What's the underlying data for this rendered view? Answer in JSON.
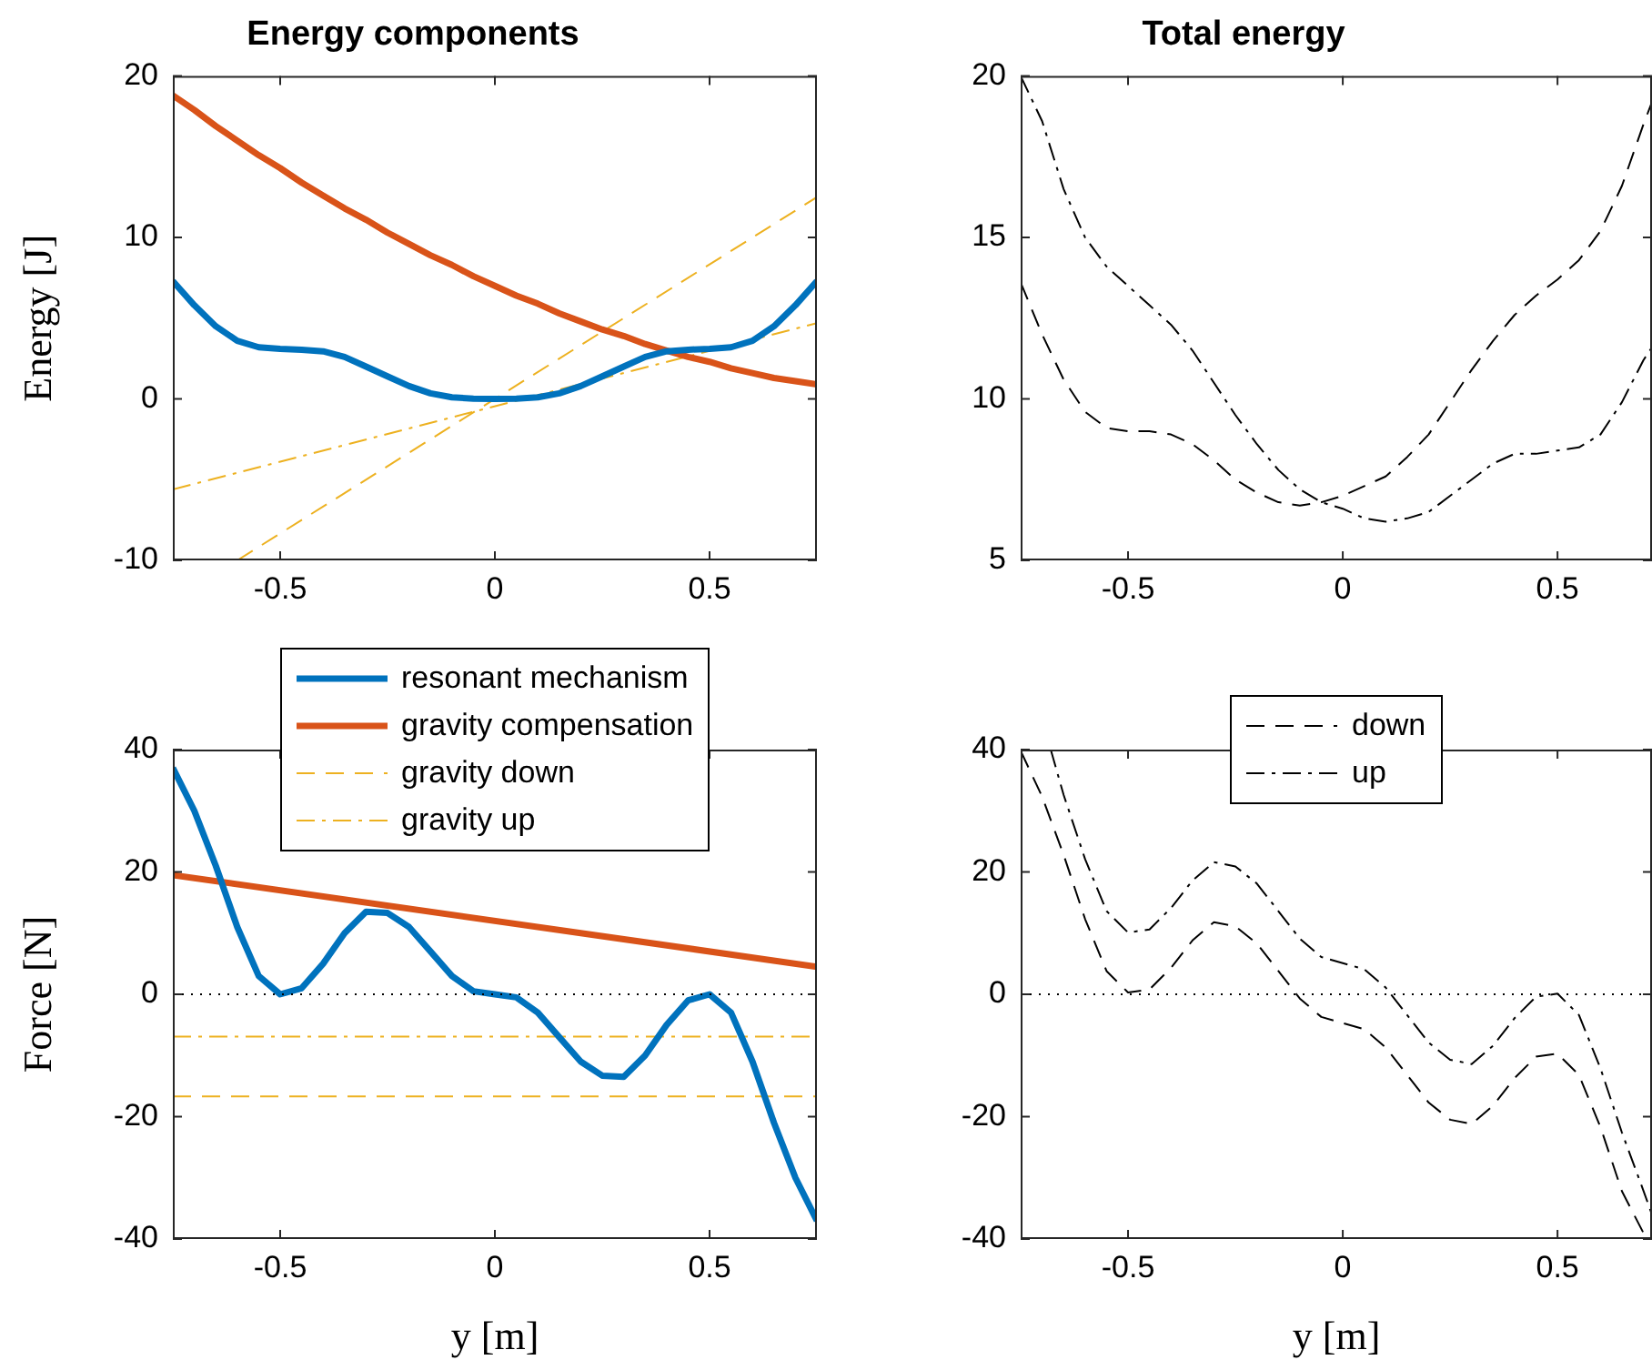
{
  "chart_data": [
    {
      "type": "line",
      "title": "Energy components",
      "ylabel": "Energy [J]",
      "xlim": [
        -0.75,
        0.75
      ],
      "ylim": [
        -10,
        20
      ],
      "xticks": [
        -0.5,
        0,
        0.5
      ],
      "yticks": [
        -10,
        0,
        10,
        20
      ],
      "grid": false,
      "legend": false,
      "marker": "none",
      "series": [
        {
          "color": "#0072bd",
          "line_style": "solid",
          "x": [
            -0.75,
            -0.7,
            -0.65,
            -0.6,
            -0.55,
            -0.5,
            -0.45,
            -0.4,
            -0.35,
            -0.3,
            -0.25,
            -0.2,
            -0.15,
            -0.1,
            -0.05,
            0,
            0.05,
            0.1,
            0.15,
            0.2,
            0.25,
            0.3,
            0.35,
            0.4,
            0.45,
            0.5,
            0.55,
            0.6,
            0.65,
            0.7,
            0.75
          ],
          "values": [
            7.3,
            5.8,
            4.5,
            3.6,
            3.2,
            3.1,
            3.05,
            2.95,
            2.6,
            2.0,
            1.4,
            0.8,
            0.35,
            0.1,
            0.02,
            0,
            0.02,
            0.1,
            0.35,
            0.8,
            1.4,
            2.0,
            2.6,
            2.95,
            3.05,
            3.1,
            3.2,
            3.6,
            4.5,
            5.8,
            7.3
          ]
        },
        {
          "color": "#d95319",
          "line_style": "solid",
          "x": [
            -0.75,
            -0.7,
            -0.65,
            -0.6,
            -0.55,
            -0.5,
            -0.45,
            -0.4,
            -0.35,
            -0.3,
            -0.25,
            -0.2,
            -0.15,
            -0.1,
            -0.05,
            0,
            0.05,
            0.1,
            0.15,
            0.2,
            0.25,
            0.3,
            0.35,
            0.4,
            0.45,
            0.5,
            0.55,
            0.6,
            0.65,
            0.7,
            0.75
          ],
          "values": [
            18.8,
            17.9,
            16.9,
            16.0,
            15.1,
            14.3,
            13.4,
            12.6,
            11.8,
            11.1,
            10.3,
            9.6,
            8.9,
            8.3,
            7.6,
            7.0,
            6.4,
            5.9,
            5.3,
            4.8,
            4.3,
            3.9,
            3.4,
            3.0,
            2.6,
            2.3,
            1.9,
            1.6,
            1.3,
            1.1,
            0.9
          ]
        },
        {
          "color": "#edb120",
          "line_style": "dashed",
          "x": [
            -0.6,
            0.75
          ],
          "values": [
            -10,
            12.5
          ]
        },
        {
          "color": "#edb120",
          "line_style": "dashdot",
          "x": [
            -0.75,
            0.75
          ],
          "values": [
            -5.6,
            4.7
          ]
        }
      ]
    },
    {
      "type": "line",
      "title": "Total energy",
      "xlim": [
        -0.75,
        0.72
      ],
      "ylim": [
        5,
        20
      ],
      "xticks": [
        -0.5,
        0,
        0.5
      ],
      "yticks": [
        5,
        10,
        15,
        20
      ],
      "grid": false,
      "legend": false,
      "marker": "none",
      "series": [
        {
          "color": "#000000",
          "line_style": "dashed",
          "x": [
            -0.75,
            -0.7,
            -0.65,
            -0.6,
            -0.55,
            -0.5,
            -0.45,
            -0.4,
            -0.35,
            -0.3,
            -0.25,
            -0.2,
            -0.15,
            -0.1,
            -0.05,
            0,
            0.05,
            0.1,
            0.15,
            0.2,
            0.25,
            0.3,
            0.35,
            0.4,
            0.45,
            0.5,
            0.55,
            0.6,
            0.65,
            0.7,
            0.72
          ],
          "values": [
            13.6,
            12.0,
            10.6,
            9.6,
            9.1,
            9.0,
            9.0,
            8.9,
            8.6,
            8.1,
            7.5,
            7.1,
            6.8,
            6.7,
            6.8,
            7.0,
            7.3,
            7.6,
            8.2,
            8.9,
            9.9,
            10.9,
            11.8,
            12.6,
            13.2,
            13.7,
            14.3,
            15.2,
            16.6,
            18.5,
            19.2
          ]
        },
        {
          "color": "#000000",
          "line_style": "dashdot",
          "x": [
            -0.75,
            -0.7,
            -0.65,
            -0.6,
            -0.55,
            -0.5,
            -0.45,
            -0.4,
            -0.35,
            -0.3,
            -0.25,
            -0.2,
            -0.15,
            -0.1,
            -0.05,
            0,
            0.05,
            0.1,
            0.15,
            0.2,
            0.25,
            0.3,
            0.35,
            0.4,
            0.45,
            0.5,
            0.55,
            0.6,
            0.65,
            0.7,
            0.72
          ],
          "values": [
            20,
            18.6,
            16.5,
            15.0,
            14.1,
            13.5,
            12.9,
            12.3,
            11.5,
            10.5,
            9.5,
            8.6,
            7.8,
            7.2,
            6.8,
            6.6,
            6.3,
            6.2,
            6.3,
            6.5,
            7.0,
            7.5,
            8.0,
            8.3,
            8.3,
            8.4,
            8.5,
            8.9,
            9.9,
            11.2,
            11.6
          ]
        }
      ]
    },
    {
      "type": "line",
      "xlabel": "y [m]",
      "ylabel": "Force [N]",
      "xlim": [
        -0.75,
        0.75
      ],
      "ylim": [
        -40,
        40
      ],
      "xticks": [
        -0.5,
        0,
        0.5
      ],
      "yticks": [
        -40,
        -20,
        0,
        20,
        40
      ],
      "grid": false,
      "legend": "top",
      "marker": "none",
      "ref_lines": [
        {
          "axis": "y",
          "value": 0,
          "color": "#000000",
          "line_style": "dotted"
        }
      ],
      "series": [
        {
          "name": "resonant mechanism",
          "color": "#0072bd",
          "line_style": "solid",
          "x": [
            -0.75,
            -0.7,
            -0.65,
            -0.6,
            -0.55,
            -0.5,
            -0.45,
            -0.4,
            -0.35,
            -0.3,
            -0.25,
            -0.2,
            -0.15,
            -0.1,
            -0.05,
            0,
            0.05,
            0.1,
            0.15,
            0.2,
            0.25,
            0.3,
            0.35,
            0.4,
            0.45,
            0.5,
            0.55,
            0.6,
            0.65,
            0.7,
            0.75
          ],
          "values": [
            37,
            30,
            21,
            11,
            3,
            0,
            1,
            5,
            10,
            13.5,
            13.3,
            11,
            7,
            3,
            0.5,
            0,
            -0.5,
            -3,
            -7,
            -11,
            -13.3,
            -13.5,
            -10,
            -5,
            -1,
            0,
            -3,
            -11,
            -21,
            -30,
            -37
          ]
        },
        {
          "name": "gravity compensation",
          "color": "#d95319",
          "line_style": "solid",
          "x": [
            -0.75,
            0.75
          ],
          "values": [
            19.5,
            4.5
          ]
        },
        {
          "name": "gravity down",
          "color": "#edb120",
          "line_style": "dashed",
          "x": [
            -0.75,
            0.75
          ],
          "values": [
            -16.7,
            -16.7
          ]
        },
        {
          "name": "gravity up",
          "color": "#edb120",
          "line_style": "dashdot",
          "x": [
            -0.75,
            0.75
          ],
          "values": [
            -6.9,
            -6.9
          ]
        }
      ]
    },
    {
      "type": "line",
      "xlabel": "y [m]",
      "xlim": [
        -0.75,
        0.72
      ],
      "ylim": [
        -40,
        40
      ],
      "xticks": [
        -0.5,
        0,
        0.5
      ],
      "yticks": [
        -40,
        -20,
        0,
        20,
        40
      ],
      "grid": false,
      "legend": "top",
      "marker": "none",
      "ref_lines": [
        {
          "axis": "y",
          "value": 0,
          "color": "#000000",
          "line_style": "dotted"
        }
      ],
      "series": [
        {
          "name": "down",
          "color": "#000000",
          "line_style": "dashed",
          "x": [
            -0.75,
            -0.7,
            -0.65,
            -0.6,
            -0.55,
            -0.5,
            -0.45,
            -0.4,
            -0.35,
            -0.3,
            -0.25,
            -0.2,
            -0.15,
            -0.1,
            -0.05,
            0,
            0.05,
            0.1,
            0.15,
            0.2,
            0.25,
            0.3,
            0.35,
            0.4,
            0.45,
            0.5,
            0.55,
            0.6,
            0.65,
            0.7,
            0.71
          ],
          "values": [
            39.8,
            32.3,
            22.8,
            12.3,
            3.8,
            0.3,
            0.8,
            4.3,
            8.8,
            11.8,
            11.1,
            8.3,
            3.8,
            -0.7,
            -3.7,
            -4.7,
            -5.7,
            -8.7,
            -13.2,
            -17.7,
            -20.5,
            -21.2,
            -18.2,
            -13.7,
            -10.2,
            -9.7,
            -13.2,
            -21.7,
            -32.2,
            -39,
            -40
          ]
        },
        {
          "name": "up",
          "color": "#000000",
          "line_style": "dashdot",
          "x": [
            -0.68,
            -0.65,
            -0.6,
            -0.55,
            -0.5,
            -0.45,
            -0.4,
            -0.35,
            -0.3,
            -0.25,
            -0.2,
            -0.15,
            -0.1,
            -0.05,
            0,
            0.05,
            0.1,
            0.15,
            0.2,
            0.25,
            0.3,
            0.35,
            0.4,
            0.45,
            0.5,
            0.55,
            0.6,
            0.65,
            0.7,
            0.72
          ],
          "values": [
            40,
            32.6,
            22.1,
            13.6,
            10.1,
            10.6,
            14.1,
            18.6,
            21.6,
            20.9,
            18.1,
            13.6,
            9.1,
            6.1,
            5.1,
            4.1,
            1.1,
            -3.4,
            -7.9,
            -10.7,
            -11.4,
            -8.4,
            -3.9,
            -0.4,
            0.1,
            -3.4,
            -12.1,
            -22.6,
            -32.1,
            -36
          ]
        }
      ]
    }
  ]
}
